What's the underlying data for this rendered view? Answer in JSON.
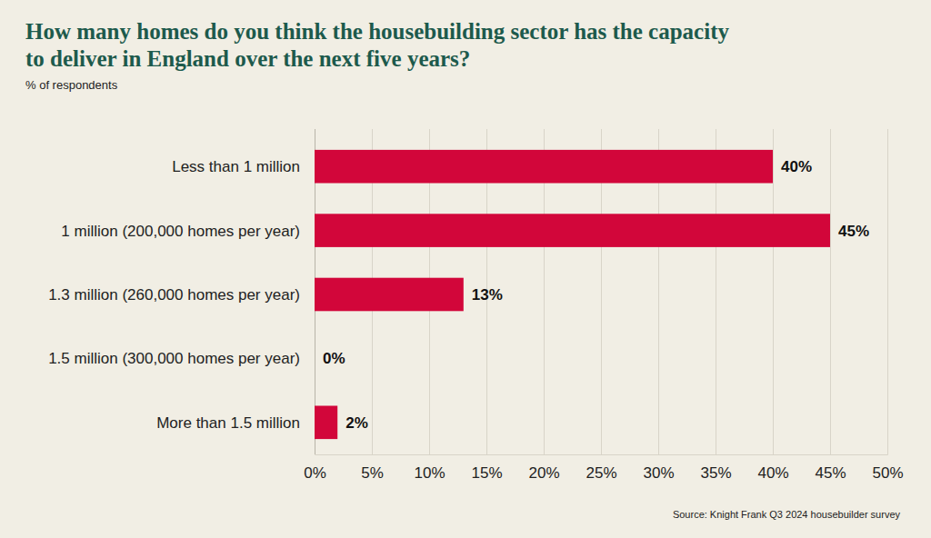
{
  "chart_data": {
    "type": "bar",
    "orientation": "horizontal",
    "title": "How many homes do you think the housebuilding sector has the capacity to deliver in England over the next five years?",
    "subtitle": "% of respondents",
    "annotations": [
      "Source: Knight Frank Q3 2024 housebuilder survey"
    ],
    "categories": [
      "Less than 1 million",
      "1 million (200,000 homes per year)",
      "1.3 million (260,000 homes per year)",
      "1.5 million (300,000 homes per year)",
      "More than 1.5 million"
    ],
    "values": [
      40,
      45,
      13,
      0,
      2
    ],
    "value_labels": [
      "40%",
      "45%",
      "13%",
      "0%",
      "2%"
    ],
    "color": "#d2063a",
    "xlim": [
      0,
      50
    ],
    "xticks": [
      {
        "value": 0,
        "label": "0%"
      },
      {
        "value": 5,
        "label": "5%"
      },
      {
        "value": 10,
        "label": "10%"
      },
      {
        "value": 15,
        "label": "15%"
      },
      {
        "value": 20,
        "label": "20%"
      },
      {
        "value": 25,
        "label": "25%"
      },
      {
        "value": 30,
        "label": "30%"
      },
      {
        "value": 35,
        "label": "35%"
      },
      {
        "value": 40,
        "label": "40%"
      },
      {
        "value": 45,
        "label": "45%"
      },
      {
        "value": 50,
        "label": "50%"
      }
    ],
    "grid": true,
    "data_labels": true
  }
}
